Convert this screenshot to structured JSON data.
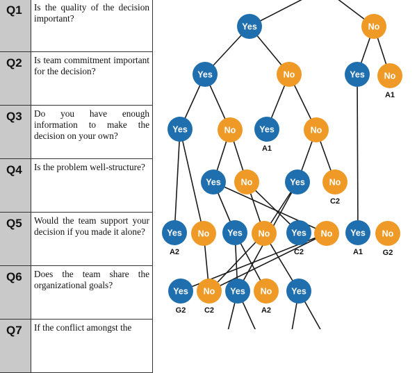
{
  "questions": [
    {
      "id": "Q1",
      "text": "Is the quality of the decision important?"
    },
    {
      "id": "Q2",
      "text": "Is team commitment important for the decision?"
    },
    {
      "id": "Q3",
      "text": "Do you have enough information to make the decision on your own?"
    },
    {
      "id": "Q4",
      "text": "Is the problem well-structure?"
    },
    {
      "id": "Q5",
      "text": "Would the team support your decision if you made it alone?"
    },
    {
      "id": "Q6",
      "text": "Does the team share the organizational goals?"
    },
    {
      "id": "Q7",
      "text": "If the conflict amongst the"
    }
  ],
  "answer_labels": {
    "yes": "Yes",
    "no": "No"
  },
  "colors": {
    "yes": "#1f6fae",
    "no": "#ef9a27",
    "line": "#1a1a1a",
    "qnum_bg": "#c9c9c9"
  },
  "tree": {
    "nodes": [
      {
        "id": "q1y",
        "answer": "yes"
      },
      {
        "id": "q1n",
        "answer": "no"
      },
      {
        "id": "q2a_y",
        "answer": "yes"
      },
      {
        "id": "q2a_n",
        "answer": "no"
      },
      {
        "id": "q2b_y",
        "answer": "yes"
      },
      {
        "id": "q2b_n",
        "answer": "no",
        "outcome": "A1"
      },
      {
        "id": "q3a_y",
        "answer": "yes"
      },
      {
        "id": "q3a_n",
        "answer": "no"
      },
      {
        "id": "q3b_y",
        "answer": "yes",
        "outcome": "A1"
      },
      {
        "id": "q3b_n",
        "answer": "no"
      },
      {
        "id": "q4a_y",
        "answer": "yes"
      },
      {
        "id": "q4a_n",
        "answer": "no"
      },
      {
        "id": "q4b_y",
        "answer": "yes"
      },
      {
        "id": "q4b_n",
        "answer": "no",
        "outcome": "C2"
      },
      {
        "id": "q5a_y",
        "answer": "yes",
        "outcome": "A2"
      },
      {
        "id": "q5a_n",
        "answer": "no"
      },
      {
        "id": "q5b_y",
        "answer": "yes"
      },
      {
        "id": "q5b_n",
        "answer": "no"
      },
      {
        "id": "q5c_y",
        "answer": "yes",
        "outcome": "C2"
      },
      {
        "id": "q5c_n",
        "answer": "no"
      },
      {
        "id": "q5d_y",
        "answer": "yes",
        "outcome": "A1"
      },
      {
        "id": "q5d_n",
        "answer": "no",
        "outcome": "G2"
      },
      {
        "id": "q6a_y",
        "answer": "yes",
        "outcome": "G2"
      },
      {
        "id": "q6a_n",
        "answer": "no",
        "outcome": "C2"
      },
      {
        "id": "q6b_y",
        "answer": "yes"
      },
      {
        "id": "q6b_n",
        "answer": "no",
        "outcome": "A2"
      },
      {
        "id": "q6c_y",
        "answer": "yes"
      }
    ],
    "edges": [
      [
        "root_l",
        "q1y"
      ],
      [
        "root_r",
        "q1n"
      ],
      [
        "q1y",
        "q2a_y"
      ],
      [
        "q1y",
        "q2a_n"
      ],
      [
        "q1n",
        "q2b_y"
      ],
      [
        "q1n",
        "q2b_n"
      ],
      [
        "q2a_y",
        "q3a_y"
      ],
      [
        "q2a_y",
        "q3a_n"
      ],
      [
        "q2a_n",
        "q3b_y"
      ],
      [
        "q2a_n",
        "q3b_n"
      ],
      [
        "q2b_y",
        "q5d_y"
      ],
      [
        "q3a_y",
        "q5a_y"
      ],
      [
        "q3a_y",
        "q5a_n"
      ],
      [
        "q3a_n",
        "q4a_y"
      ],
      [
        "q3a_n",
        "q4a_n"
      ],
      [
        "q3b_n",
        "q4b_y"
      ],
      [
        "q3b_n",
        "q4b_n"
      ],
      [
        "q4a_y",
        "q5b_y"
      ],
      [
        "q4a_y",
        "q5c_n"
      ],
      [
        "q4a_n",
        "q5b_n"
      ],
      [
        "q4a_n",
        "q5c_y"
      ],
      [
        "q4b_y",
        "q5b_n"
      ],
      [
        "q4b_y",
        "q6b_y"
      ],
      [
        "q5a_n",
        "q6a_n"
      ],
      [
        "q5b_y",
        "q6b_n"
      ],
      [
        "q5b_y",
        "q6b_y"
      ],
      [
        "q5b_n",
        "q6a_n"
      ],
      [
        "q5b_n",
        "q6c_y"
      ],
      [
        "q5c_n",
        "q6a_y"
      ],
      [
        "q5c_n",
        "q6a_n"
      ],
      [
        "q6b_y",
        "q7_1"
      ],
      [
        "q6b_y",
        "q7_2"
      ],
      [
        "q6c_y",
        "q7_3"
      ],
      [
        "q6c_y",
        "q7_4"
      ]
    ]
  }
}
